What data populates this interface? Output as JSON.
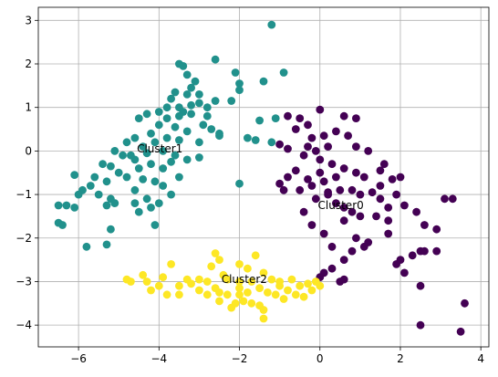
{
  "chart_data": {
    "type": "scatter",
    "xlim": [
      -7.0,
      4.2
    ],
    "ylim": [
      -4.5,
      3.3
    ],
    "xticks": [
      -6,
      -4,
      -2,
      0,
      2,
      4
    ],
    "yticks": [
      -4,
      -3,
      -2,
      -1,
      0,
      1,
      2,
      3
    ],
    "xtick_labels": [
      "−6",
      "−4",
      "−2",
      "0",
      "2",
      "4"
    ],
    "ytick_labels": [
      "−4",
      "−3",
      "−2",
      "−1",
      "0",
      "1",
      "2",
      "3"
    ],
    "grid": true,
    "annotations": [
      {
        "text": "Cluster1",
        "x": -4.55,
        "y": 0.05
      },
      {
        "text": "Cluster0",
        "x": -0.05,
        "y": -1.25
      },
      {
        "text": "Cluster2",
        "x": -2.45,
        "y": -2.95
      }
    ],
    "series": [
      {
        "color": "#21918c",
        "points": [
          [
            -1.2,
            2.9
          ],
          [
            -2.6,
            2.1
          ],
          [
            -3.5,
            2.0
          ],
          [
            -3.4,
            1.95
          ],
          [
            -2.1,
            1.8
          ],
          [
            -2.0,
            1.55
          ],
          [
            -2.0,
            1.4
          ],
          [
            -3.3,
            1.75
          ],
          [
            -3.1,
            1.6
          ],
          [
            -3.2,
            1.45
          ],
          [
            -3.3,
            1.3
          ],
          [
            -3.0,
            1.3
          ],
          [
            -3.6,
            1.35
          ],
          [
            -3.7,
            1.2
          ],
          [
            -3.0,
            1.1
          ],
          [
            -3.2,
            1.05
          ],
          [
            -2.8,
            1.0
          ],
          [
            -2.6,
            1.15
          ],
          [
            -3.5,
            1.0
          ],
          [
            -3.4,
            0.9
          ],
          [
            -4.0,
            0.9
          ],
          [
            -4.3,
            0.85
          ],
          [
            -4.5,
            0.75
          ],
          [
            -3.8,
            0.75
          ],
          [
            -3.5,
            0.8
          ],
          [
            -3.2,
            0.85
          ],
          [
            -2.9,
            0.6
          ],
          [
            -2.7,
            0.5
          ],
          [
            -2.5,
            0.4
          ],
          [
            -3.6,
            0.55
          ],
          [
            -3.3,
            0.45
          ],
          [
            -4.0,
            0.6
          ],
          [
            -4.2,
            0.4
          ],
          [
            -4.1,
            0.2
          ],
          [
            -3.8,
            0.3
          ],
          [
            -3.5,
            0.25
          ],
          [
            -4.6,
            0.3
          ],
          [
            -4.8,
            0.2
          ],
          [
            -4.4,
            0.1
          ],
          [
            -3.9,
            0.0
          ],
          [
            -3.6,
            -0.1
          ],
          [
            -3.3,
            -0.2
          ],
          [
            -3.0,
            -0.15
          ],
          [
            -4.3,
            -0.05
          ],
          [
            -4.6,
            -0.2
          ],
          [
            -4.9,
            -0.1
          ],
          [
            -5.1,
            0.0
          ],
          [
            -4.2,
            -0.3
          ],
          [
            -3.9,
            -0.4
          ],
          [
            -3.7,
            -0.25
          ],
          [
            -4.5,
            -0.4
          ],
          [
            -5.2,
            -0.35
          ],
          [
            -5.4,
            -0.3
          ],
          [
            -5.0,
            -0.5
          ],
          [
            -4.8,
            -0.6
          ],
          [
            -4.4,
            -0.65
          ],
          [
            -4.1,
            -0.7
          ],
          [
            -3.9,
            -0.8
          ],
          [
            -5.3,
            -0.7
          ],
          [
            -5.6,
            -0.6
          ],
          [
            -5.7,
            -0.8
          ],
          [
            -5.9,
            -0.9
          ],
          [
            -6.1,
            -0.55
          ],
          [
            -6.0,
            -1.0
          ],
          [
            -5.5,
            -1.0
          ],
          [
            -5.2,
            -1.1
          ],
          [
            -5.1,
            -1.2
          ],
          [
            -5.3,
            -1.25
          ],
          [
            -4.6,
            -0.9
          ],
          [
            -4.6,
            -1.2
          ],
          [
            -4.3,
            -1.1
          ],
          [
            -4.2,
            -1.3
          ],
          [
            -4.0,
            -1.2
          ],
          [
            -3.7,
            -1.0
          ],
          [
            -3.5,
            -0.6
          ],
          [
            -4.5,
            -1.4
          ],
          [
            -4.1,
            -1.7
          ],
          [
            -5.2,
            -1.8
          ],
          [
            -6.3,
            -1.25
          ],
          [
            -6.1,
            -1.3
          ],
          [
            -6.5,
            -1.25
          ],
          [
            -6.5,
            -1.65
          ],
          [
            -6.4,
            -1.7
          ],
          [
            -5.8,
            -2.2
          ],
          [
            -5.3,
            -2.15
          ],
          [
            -1.4,
            1.6
          ],
          [
            -0.9,
            1.8
          ],
          [
            -1.5,
            0.7
          ],
          [
            -1.8,
            0.3
          ],
          [
            -1.6,
            0.25
          ],
          [
            -1.2,
            0.2
          ],
          [
            -2.0,
            -0.75
          ],
          [
            -2.5,
            0.35
          ],
          [
            -1.1,
            0.75
          ],
          [
            -2.2,
            1.15
          ],
          [
            -3.0,
            0.2
          ],
          [
            -4.7,
            -0.1
          ],
          [
            -3.8,
            1.0
          ],
          [
            -2.8,
            0.8
          ]
        ]
      },
      {
        "color": "#440154",
        "points": [
          [
            0.6,
            0.8
          ],
          [
            0.9,
            0.75
          ],
          [
            0.0,
            0.95
          ],
          [
            -0.8,
            0.8
          ],
          [
            -0.5,
            0.75
          ],
          [
            -0.3,
            0.6
          ],
          [
            -0.6,
            0.5
          ],
          [
            -0.2,
            0.3
          ],
          [
            0.1,
            0.35
          ],
          [
            0.4,
            0.45
          ],
          [
            0.7,
            0.35
          ],
          [
            0.9,
            0.1
          ],
          [
            1.2,
            0.0
          ],
          [
            0.2,
            0.1
          ],
          [
            -0.1,
            0.0
          ],
          [
            -0.4,
            -0.1
          ],
          [
            -0.8,
            0.05
          ],
          [
            -1.0,
            0.15
          ],
          [
            0.0,
            -0.2
          ],
          [
            0.3,
            -0.3
          ],
          [
            0.6,
            -0.4
          ],
          [
            0.9,
            -0.5
          ],
          [
            1.1,
            -0.6
          ],
          [
            1.5,
            -0.45
          ],
          [
            1.8,
            -0.65
          ],
          [
            2.0,
            -0.6
          ],
          [
            -0.6,
            -0.45
          ],
          [
            -0.8,
            -0.6
          ],
          [
            -1.0,
            -0.75
          ],
          [
            -0.3,
            -0.65
          ],
          [
            -0.5,
            -0.9
          ],
          [
            -0.2,
            -0.8
          ],
          [
            0.1,
            -0.7
          ],
          [
            0.4,
            -0.6
          ],
          [
            0.5,
            -0.9
          ],
          [
            0.8,
            -0.9
          ],
          [
            1.0,
            -1.0
          ],
          [
            1.3,
            -0.95
          ],
          [
            1.5,
            -1.1
          ],
          [
            1.7,
            -1.3
          ],
          [
            1.9,
            -1.0
          ],
          [
            2.1,
            -1.25
          ],
          [
            1.6,
            -0.3
          ],
          [
            2.4,
            -1.4
          ],
          [
            2.6,
            -1.7
          ],
          [
            2.9,
            -1.8
          ],
          [
            3.1,
            -1.1
          ],
          [
            2.5,
            -2.3
          ],
          [
            2.3,
            -2.4
          ],
          [
            2.6,
            -2.3
          ],
          [
            1.9,
            -2.6
          ],
          [
            2.1,
            -2.8
          ],
          [
            1.7,
            -1.6
          ],
          [
            1.4,
            -1.5
          ],
          [
            1.0,
            -1.5
          ],
          [
            0.8,
            -1.4
          ],
          [
            0.6,
            -1.3
          ],
          [
            0.4,
            -1.2
          ],
          [
            0.2,
            -1.0
          ],
          [
            -0.1,
            -1.1
          ],
          [
            1.2,
            -2.1
          ],
          [
            0.8,
            -2.3
          ],
          [
            0.6,
            -2.5
          ],
          [
            0.6,
            -2.95
          ],
          [
            0.3,
            -2.7
          ],
          [
            0.1,
            -2.8
          ],
          [
            0.0,
            -2.9
          ],
          [
            0.5,
            -3.0
          ],
          [
            -0.4,
            -1.4
          ],
          [
            -0.2,
            -1.7
          ],
          [
            0.1,
            -1.9
          ],
          [
            0.3,
            -2.2
          ],
          [
            3.3,
            -1.1
          ],
          [
            2.5,
            -3.1
          ],
          [
            3.6,
            -3.5
          ],
          [
            3.5,
            -4.15
          ],
          [
            2.5,
            -4.0
          ],
          [
            2.9,
            -2.3
          ],
          [
            -0.9,
            -0.9
          ],
          [
            0.0,
            -0.5
          ],
          [
            1.5,
            -0.8
          ],
          [
            0.6,
            -1.6
          ],
          [
            2.0,
            -2.5
          ],
          [
            1.1,
            -2.2
          ],
          [
            0.2,
            -0.95
          ],
          [
            -0.3,
            0.1
          ],
          [
            1.7,
            -1.9
          ],
          [
            0.9,
            -2.0
          ]
        ]
      },
      {
        "color": "#fde725",
        "points": [
          [
            -3.7,
            -2.6
          ],
          [
            -2.6,
            -2.35
          ],
          [
            -2.5,
            -2.5
          ],
          [
            -2.0,
            -2.6
          ],
          [
            -1.6,
            -2.4
          ],
          [
            -1.8,
            -2.7
          ],
          [
            -2.7,
            -2.65
          ],
          [
            -2.4,
            -2.85
          ],
          [
            -2.3,
            -2.95
          ],
          [
            -2.0,
            -3.0
          ],
          [
            -1.7,
            -3.0
          ],
          [
            -1.4,
            -2.8
          ],
          [
            -1.2,
            -2.95
          ],
          [
            -1.0,
            -3.0
          ],
          [
            -0.7,
            -2.95
          ],
          [
            -0.5,
            -3.1
          ],
          [
            -0.3,
            -3.05
          ],
          [
            0.0,
            -3.1
          ],
          [
            -3.9,
            -2.9
          ],
          [
            -4.4,
            -2.85
          ],
          [
            -4.8,
            -2.95
          ],
          [
            -4.7,
            -3.0
          ],
          [
            -4.3,
            -3.0
          ],
          [
            -4.0,
            -3.1
          ],
          [
            -3.5,
            -3.1
          ],
          [
            -3.2,
            -3.05
          ],
          [
            -3.0,
            -2.95
          ],
          [
            -2.8,
            -3.0
          ],
          [
            -3.0,
            -3.2
          ],
          [
            -2.8,
            -3.3
          ],
          [
            -2.5,
            -3.25
          ],
          [
            -2.3,
            -3.3
          ],
          [
            -2.0,
            -3.3
          ],
          [
            -1.8,
            -3.25
          ],
          [
            -1.5,
            -3.15
          ],
          [
            -1.3,
            -3.25
          ],
          [
            -1.1,
            -3.3
          ],
          [
            -0.8,
            -3.2
          ],
          [
            -0.6,
            -3.3
          ],
          [
            -0.4,
            -3.35
          ],
          [
            -0.2,
            -3.2
          ],
          [
            -1.7,
            -3.5
          ],
          [
            -1.5,
            -3.55
          ],
          [
            -1.4,
            -3.65
          ],
          [
            -1.9,
            -3.45
          ],
          [
            -2.1,
            -3.5
          ],
          [
            -2.5,
            -3.45
          ],
          [
            -3.5,
            -3.3
          ],
          [
            -3.8,
            -3.3
          ],
          [
            -4.2,
            -3.2
          ],
          [
            -2.6,
            -3.15
          ],
          [
            -1.0,
            -3.1
          ],
          [
            -0.1,
            -3.0
          ],
          [
            -1.4,
            -3.85
          ],
          [
            -2.2,
            -3.6
          ],
          [
            -0.9,
            -3.4
          ],
          [
            -2.0,
            -3.15
          ],
          [
            -3.3,
            -2.95
          ]
        ]
      }
    ]
  }
}
